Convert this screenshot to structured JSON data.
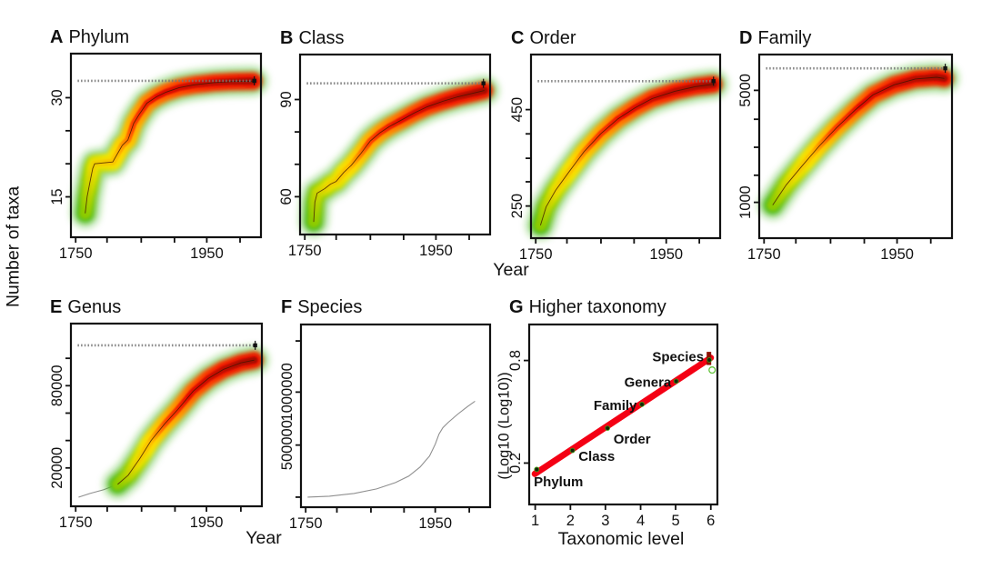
{
  "chart_data": {
    "type": "multi-panel",
    "description": "Taxonomic discovery curves: cumulative number of taxa described over time for six taxonomic ranks (A-F, density bands with asymptote estimates) and a log-log regression across ranks (G).",
    "shared_y_label": "Number of taxa",
    "x_label_top_row": "Year",
    "x_label_bottom_row": "Year",
    "band_colors": {
      "outer_green": "#3db312",
      "yellow": "#f3e800",
      "orange": "#ff9100",
      "red": "#ee1500",
      "dark_red": "#a50d00"
    },
    "panels": [
      {
        "letter": "A",
        "title": "Phylum",
        "x_ticks": [
          {
            "label": "1750",
            "rel": 0.025
          },
          {
            "label": "1950",
            "rel": 0.715
          }
        ],
        "x_minor": [
          0.19,
          0.37,
          0.545,
          0.89
        ],
        "y_ticks": [
          {
            "label": "30",
            "rel": 0.24
          },
          {
            "label": "15",
            "rel": 0.78
          }
        ],
        "y_minor": [
          0.42,
          0.6
        ],
        "asymptote_rel": 0.148,
        "asymptote_estimate": 32.5,
        "curve": [
          [
            0.075,
            0.87
          ],
          [
            0.085,
            0.78
          ],
          [
            0.1,
            0.7
          ],
          [
            0.115,
            0.625
          ],
          [
            0.125,
            0.6
          ],
          [
            0.22,
            0.59
          ],
          [
            0.27,
            0.5
          ],
          [
            0.3,
            0.47
          ],
          [
            0.33,
            0.38
          ],
          [
            0.36,
            0.33
          ],
          [
            0.4,
            0.27
          ],
          [
            0.45,
            0.235
          ],
          [
            0.5,
            0.21
          ],
          [
            0.57,
            0.185
          ],
          [
            0.65,
            0.17
          ],
          [
            0.75,
            0.158
          ],
          [
            0.85,
            0.152
          ],
          [
            0.96,
            0.15
          ]
        ],
        "approx_series": {
          "year": [
            1760,
            1780,
            1800,
            1830,
            1850,
            1875,
            1900,
            1950,
            2010
          ],
          "count": [
            12,
            18,
            20,
            24,
            27,
            29,
            30,
            31,
            31.5
          ]
        }
      },
      {
        "letter": "B",
        "title": "Class",
        "x_ticks": [
          {
            "label": "1750",
            "rel": 0.025
          },
          {
            "label": "1950",
            "rel": 0.715
          }
        ],
        "x_minor": [
          0.19,
          0.37,
          0.545,
          0.89
        ],
        "y_ticks": [
          {
            "label": "90",
            "rel": 0.25
          },
          {
            "label": "60",
            "rel": 0.79
          }
        ],
        "y_minor": [
          0.43,
          0.61
        ],
        "asymptote_rel": 0.16,
        "asymptote_estimate": 95,
        "curve": [
          [
            0.072,
            0.93
          ],
          [
            0.078,
            0.82
          ],
          [
            0.09,
            0.77
          ],
          [
            0.13,
            0.745
          ],
          [
            0.16,
            0.72
          ],
          [
            0.19,
            0.705
          ],
          [
            0.23,
            0.655
          ],
          [
            0.27,
            0.615
          ],
          [
            0.32,
            0.55
          ],
          [
            0.37,
            0.48
          ],
          [
            0.42,
            0.435
          ],
          [
            0.47,
            0.4
          ],
          [
            0.54,
            0.36
          ],
          [
            0.6,
            0.325
          ],
          [
            0.67,
            0.29
          ],
          [
            0.75,
            0.26
          ],
          [
            0.83,
            0.235
          ],
          [
            0.91,
            0.215
          ],
          [
            0.97,
            0.2
          ]
        ],
        "approx_series": {
          "year": [
            1760,
            1780,
            1800,
            1825,
            1850,
            1875,
            1900,
            1925,
            1950,
            1980,
            2010
          ],
          "count": [
            50,
            61,
            64,
            70,
            76,
            80,
            84,
            86,
            88,
            91,
            93
          ]
        }
      },
      {
        "letter": "C",
        "title": "Order",
        "x_ticks": [
          {
            "label": "1750",
            "rel": 0.025
          },
          {
            "label": "1950",
            "rel": 0.715
          }
        ],
        "x_minor": [
          0.19,
          0.37,
          0.545,
          0.89
        ],
        "y_ticks": [
          {
            "label": "450",
            "rel": 0.3
          },
          {
            "label": "250",
            "rel": 0.825
          }
        ],
        "y_minor": [
          0.432,
          0.565,
          0.693
        ],
        "asymptote_rel": 0.145,
        "asymptote_estimate": 508,
        "curve": [
          [
            0.05,
            0.93
          ],
          [
            0.08,
            0.83
          ],
          [
            0.13,
            0.74
          ],
          [
            0.2,
            0.64
          ],
          [
            0.28,
            0.53
          ],
          [
            0.37,
            0.43
          ],
          [
            0.46,
            0.35
          ],
          [
            0.55,
            0.29
          ],
          [
            0.64,
            0.24
          ],
          [
            0.76,
            0.2
          ],
          [
            0.87,
            0.175
          ],
          [
            0.965,
            0.162
          ]
        ],
        "approx_series": {
          "year": [
            1760,
            1780,
            1800,
            1820,
            1840,
            1860,
            1880,
            1900,
            1930,
            1960,
            1990,
            2010
          ],
          "count": [
            210,
            245,
            275,
            305,
            340,
            370,
            400,
            425,
            455,
            475,
            490,
            500
          ]
        }
      },
      {
        "letter": "D",
        "title": "Family",
        "x_ticks": [
          {
            "label": "1750",
            "rel": 0.025
          },
          {
            "label": "1950",
            "rel": 0.715
          }
        ],
        "x_minor": [
          0.19,
          0.37,
          0.545,
          0.89
        ],
        "y_ticks": [
          {
            "label": "5000",
            "rel": 0.195
          },
          {
            "label": "1000",
            "rel": 0.805
          }
        ],
        "y_minor": [
          0.3525,
          0.505,
          0.6575
        ],
        "asymptote_rel": 0.075,
        "asymptote_estimate": 5800,
        "curve": [
          [
            0.07,
            0.82
          ],
          [
            0.14,
            0.71
          ],
          [
            0.22,
            0.61
          ],
          [
            0.31,
            0.5
          ],
          [
            0.4,
            0.4
          ],
          [
            0.5,
            0.3
          ],
          [
            0.59,
            0.22
          ],
          [
            0.7,
            0.165
          ],
          [
            0.81,
            0.133
          ],
          [
            0.92,
            0.124
          ],
          [
            0.96,
            0.13
          ]
        ],
        "approx_series": {
          "year": [
            1760,
            1780,
            1800,
            1820,
            1840,
            1860,
            1880,
            1900,
            1920,
            1950,
            1980,
            2010
          ],
          "count": [
            950,
            1200,
            1600,
            2100,
            2700,
            3300,
            3900,
            4400,
            4800,
            5200,
            5400,
            5450
          ]
        }
      },
      {
        "letter": "E",
        "title": "Genus",
        "x_ticks": [
          {
            "label": "1750",
            "rel": 0.025
          },
          {
            "label": "1950",
            "rel": 0.71
          }
        ],
        "x_minor": [
          0.19,
          0.37,
          0.545,
          0.89
        ],
        "y_ticks": [
          {
            "label": "80000",
            "rel": 0.34
          },
          {
            "label": "20000",
            "rel": 0.79
          }
        ],
        "y_minor": [
          0.19,
          0.49,
          0.64
        ],
        "asymptote_rel": 0.119,
        "asymptote_estimate": 109000,
        "pre_curve": [
          [
            0.04,
            0.95
          ],
          [
            0.1,
            0.93
          ],
          [
            0.17,
            0.91
          ],
          [
            0.245,
            0.88
          ]
        ],
        "curve": [
          [
            0.245,
            0.88
          ],
          [
            0.3,
            0.83
          ],
          [
            0.36,
            0.74
          ],
          [
            0.42,
            0.64
          ],
          [
            0.49,
            0.55
          ],
          [
            0.56,
            0.47
          ],
          [
            0.64,
            0.37
          ],
          [
            0.72,
            0.3
          ],
          [
            0.8,
            0.25
          ],
          [
            0.89,
            0.215
          ],
          [
            0.96,
            0.2
          ]
        ],
        "approx_series": {
          "year": [
            1760,
            1790,
            1810,
            1840,
            1870,
            1900,
            1930,
            1960,
            1990,
            2010
          ],
          "count": [
            2000,
            7000,
            10000,
            22000,
            42000,
            62000,
            79000,
            91000,
            99000,
            103000
          ]
        }
      },
      {
        "letter": "F",
        "title": "Species",
        "x_ticks": [
          {
            "label": "1750",
            "rel": 0.025
          },
          {
            "label": "1950",
            "rel": 0.71
          }
        ],
        "x_minor": [
          0.19,
          0.37,
          0.545,
          0.89
        ],
        "y_ticks": [
          {
            "label": "1000000",
            "rel": 0.37
          },
          {
            "label": "500000",
            "rel": 0.66
          }
        ],
        "y_minor": [
          0.09,
          0.945
        ],
        "line": [
          [
            0.035,
            0.945
          ],
          [
            0.15,
            0.94
          ],
          [
            0.28,
            0.925
          ],
          [
            0.4,
            0.9
          ],
          [
            0.5,
            0.865
          ],
          [
            0.57,
            0.83
          ],
          [
            0.63,
            0.78
          ],
          [
            0.68,
            0.72
          ],
          [
            0.71,
            0.655
          ],
          [
            0.73,
            0.6
          ],
          [
            0.75,
            0.565
          ],
          [
            0.78,
            0.535
          ],
          [
            0.83,
            0.49
          ],
          [
            0.88,
            0.45
          ],
          [
            0.92,
            0.42
          ]
        ],
        "approx_series": {
          "year": [
            1760,
            1800,
            1850,
            1900,
            1925,
            1950,
            1975,
            2000,
            2010
          ],
          "count": [
            10000,
            30000,
            120000,
            300000,
            420000,
            600000,
            780000,
            900000,
            950000
          ]
        }
      },
      {
        "letter": "G",
        "title": "Higher taxonomy",
        "x_label": "Taxonomic level",
        "y_label": "(Log10 (Log10))",
        "x_ticks": [
          {
            "label": "1",
            "rel": 0.032
          },
          {
            "label": "2",
            "rel": 0.219
          },
          {
            "label": "3",
            "rel": 0.405
          },
          {
            "label": "4",
            "rel": 0.592
          },
          {
            "label": "5",
            "rel": 0.778
          },
          {
            "label": "6",
            "rel": 0.965
          }
        ],
        "y_ticks": [
          {
            "label": "0.8",
            "rel": 0.2
          },
          {
            "label": "0.2",
            "rel": 0.77
          }
        ],
        "y_minor": [],
        "scatter": {
          "regression_line": {
            "rel": [
              [
                0.03,
                0.83
              ],
              [
                0.965,
                0.185
              ]
            ],
            "color": "#f40014"
          },
          "points": [
            {
              "label": "Phylum",
              "level": 1,
              "value": 0.18,
              "rel": [
                0.04,
                0.805
              ],
              "label_pos": [
                0.025,
                0.9
              ],
              "anchor": "start"
            },
            {
              "label": "Class",
              "level": 2,
              "value": 0.29,
              "rel": [
                0.23,
                0.7
              ],
              "label_pos": [
                0.262,
                0.758
              ],
              "anchor": "start"
            },
            {
              "label": "Order",
              "level": 3,
              "value": 0.41,
              "rel": [
                0.416,
                0.576
              ],
              "label_pos": [
                0.448,
                0.662
              ],
              "anchor": "start"
            },
            {
              "label": "Family",
              "level": 4,
              "value": 0.54,
              "rel": [
                0.599,
                0.444
              ],
              "label_pos": [
                0.572,
                0.474
              ],
              "anchor": "end"
            },
            {
              "label": "Genera",
              "level": 5,
              "value": 0.66,
              "rel": [
                0.781,
                0.315
              ],
              "label_pos": [
                0.755,
                0.347
              ],
              "anchor": "end"
            },
            {
              "label": "Species",
              "level": 6,
              "value": 0.78,
              "rel": [
                0.957,
                0.197
              ],
              "label_pos": [
                0.928,
                0.205
              ],
              "anchor": "end"
            }
          ],
          "red_bar": {
            "x": 0.955,
            "y1": 0.152,
            "y2": 0.225
          },
          "open_circle": [
            0.972,
            0.253
          ]
        }
      }
    ]
  }
}
